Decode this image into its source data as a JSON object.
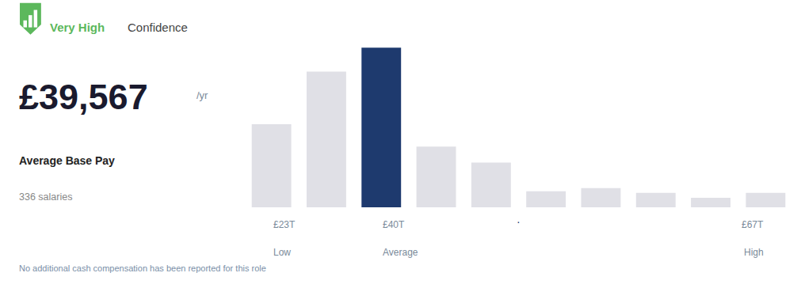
{
  "chart_data": {
    "type": "bar",
    "categories": [
      null,
      null,
      null,
      null,
      null,
      null,
      null,
      null,
      null,
      null
    ],
    "values": [
      0.52,
      0.85,
      1.0,
      0.38,
      0.28,
      0.1,
      0.12,
      0.09,
      0.06,
      0.09
    ],
    "colors": [
      "#e0e0e6",
      "#e0e0e6",
      "#1e3a6e",
      "#e0e0e6",
      "#e0e0e6",
      "#e0e0e6",
      "#e0e0e6",
      "#e0e0e6",
      "#e0e0e6",
      "#e0e0e6"
    ],
    "ylim": [
      0,
      1.12
    ],
    "grid": false,
    "tick_labels": false,
    "annotations": [
      {
        "text": "Very High",
        "color": "#5cb85c"
      },
      {
        "text": "Confidence",
        "color": "#444444"
      },
      {
        "text": "£39,567",
        "color": "#1a1a2e"
      },
      {
        "text": "/yr",
        "color": "#7a8a9a"
      },
      {
        "text": "Average Base Pay",
        "color": "#222222"
      },
      {
        "text": "336 salaries",
        "color": "#888888"
      },
      {
        "text": "No additional cash compensation has been reported for this role",
        "color": "#7a8fa8"
      },
      {
        "x": 0,
        "text": "£23T",
        "color": "#7a8a9a"
      },
      {
        "x": 0,
        "text": "Low",
        "color": "#7a8a9a"
      },
      {
        "x": 2,
        "text": "£40T",
        "color": "#7a8a9a"
      },
      {
        "x": 2,
        "text": "Average",
        "color": "#7a8a9a"
      },
      {
        "x": 4.5,
        "text": "·",
        "color": "#1e3a6e"
      },
      {
        "x": 9,
        "text": "£67T",
        "color": "#7a8a9a"
      },
      {
        "x": 9,
        "text": "High",
        "color": "#7a8a9a"
      }
    ]
  }
}
